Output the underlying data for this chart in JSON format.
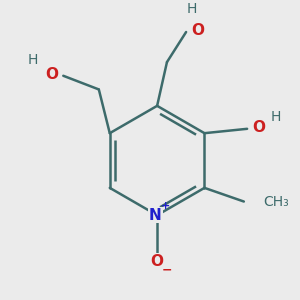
{
  "bg_color": "#ebebeb",
  "bond_color": "#3d6b6b",
  "bond_width": 1.8,
  "atom_colors": {
    "N": "#2020cc",
    "O": "#cc2020",
    "C": "#3d6b6b",
    "H": "#3d6b6b"
  },
  "font_size": 10,
  "figsize": [
    3.0,
    3.0
  ],
  "dpi": 100
}
